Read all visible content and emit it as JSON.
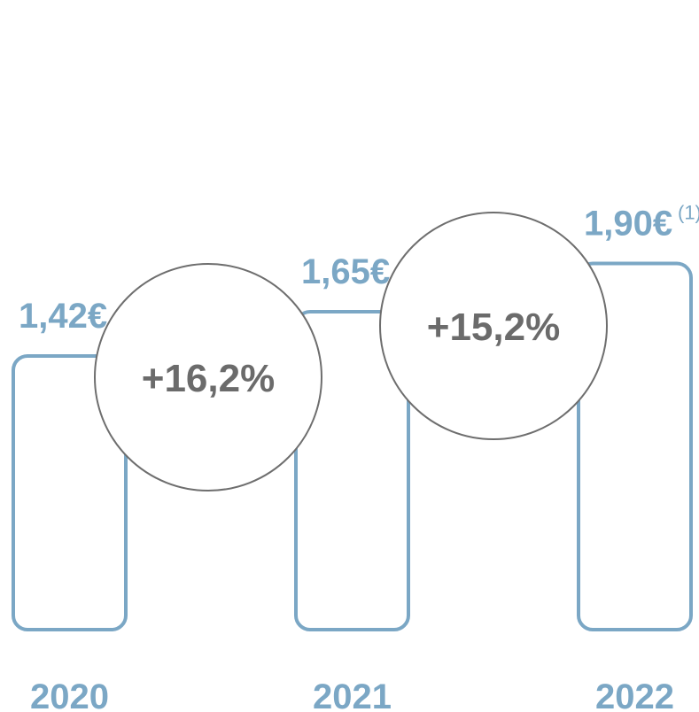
{
  "chart_data": {
    "type": "bar",
    "categories": [
      "2020",
      "2021",
      "2022"
    ],
    "values": [
      1.42,
      1.65,
      1.9
    ],
    "value_labels": [
      "1,42€",
      "1,65€",
      "1,90€"
    ],
    "footnotes": [
      "",
      "",
      "(1)"
    ],
    "growth_labels": [
      "+16,2%",
      "+15,2%"
    ],
    "colors": {
      "bar": "#7ba7c5",
      "label": "#7ba7c5",
      "growth_text": "#6b6b6b",
      "growth_circle": "#6e6e6e"
    }
  }
}
